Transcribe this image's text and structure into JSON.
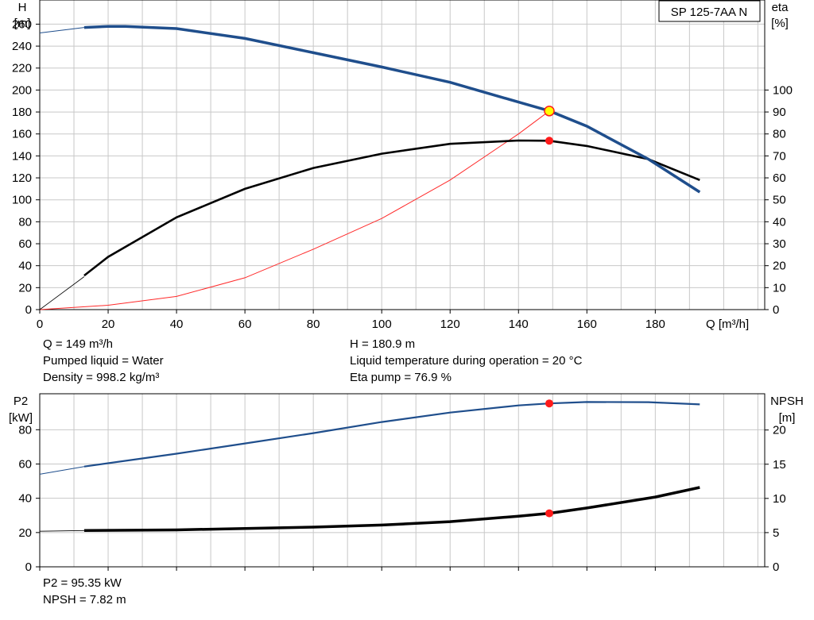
{
  "colors": {
    "head_curve": "#1f4e8c",
    "eta_curve": "#000000",
    "system_curve": "#ff2a2a",
    "p2_curve": "#1f4e8c",
    "npsh_curve": "#000000",
    "marker": "#ff1a1a",
    "marker_duty_fill": "#ffff00",
    "grid": "#c8c8c8"
  },
  "top_chart": {
    "product_label": "SP 125-7AA N",
    "left_axis_label": [
      "H",
      "[m]"
    ],
    "right_axis_label": [
      "eta",
      "[%]"
    ],
    "x_axis_label": "Q [m³/h]"
  },
  "bottom_chart": {
    "left_axis_label": [
      "P2",
      "[kW]"
    ],
    "right_axis_label": [
      "NPSH",
      "[m]"
    ]
  },
  "info_top": {
    "q": "Q = 149 m³/h",
    "pumped_liquid": "Pumped liquid = Water",
    "density": "Density = 998.2 kg/m³",
    "h": "H = 180.9 m",
    "liquid_temp": "Liquid temperature during operation = 20 °C",
    "eta_pump": "Eta pump = 76.9 %"
  },
  "info_bottom": {
    "p2": "P2 = 95.35 kW",
    "npsh": "NPSH = 7.82 m"
  },
  "chart_data": [
    {
      "type": "line",
      "x_ticks": [
        0,
        20,
        40,
        60,
        80,
        100,
        120,
        140,
        160,
        180
      ],
      "xlim": [
        0,
        212
      ],
      "y_left_ticks": [
        0,
        20,
        40,
        60,
        80,
        100,
        120,
        140,
        160,
        180,
        200,
        220,
        240,
        260
      ],
      "ylim_left": [
        0,
        282
      ],
      "y_right_ticks": [
        0,
        10,
        20,
        30,
        40,
        50,
        60,
        70,
        80,
        90,
        100
      ],
      "ylim_right": [
        0,
        141
      ],
      "series": [
        {
          "key": "head",
          "axis": "left",
          "thin_x": [
            0,
            13
          ],
          "thin_y": [
            252,
            257
          ],
          "x": [
            13,
            20,
            25,
            40,
            60,
            80,
            100,
            120,
            140,
            149,
            160,
            178,
            193
          ],
          "y": [
            257,
            258,
            258,
            256,
            247,
            234,
            221,
            207,
            189,
            181,
            167,
            137,
            107
          ]
        },
        {
          "key": "eta",
          "axis": "right",
          "thin_x": [
            0,
            13
          ],
          "thin_y": [
            0,
            15
          ],
          "x": [
            13,
            20,
            40,
            60,
            80,
            100,
            120,
            140,
            149,
            160,
            178,
            193
          ],
          "y": [
            15.5,
            24,
            42,
            55,
            64.5,
            71,
            75.5,
            77,
            76.9,
            74.5,
            68.5,
            59
          ]
        },
        {
          "key": "system",
          "axis": "left",
          "x": [
            0,
            20,
            40,
            60,
            80,
            100,
            120,
            140,
            149
          ],
          "y": [
            0,
            4,
            12,
            29,
            55,
            83,
            118,
            160,
            180.9
          ]
        }
      ],
      "duty_point": {
        "x": 149,
        "y": 180.9
      },
      "eta_point": {
        "x": 149,
        "y": 76.9
      }
    },
    {
      "type": "line",
      "x_ticks": [
        0,
        20,
        40,
        60,
        80,
        100,
        120,
        140,
        160,
        180
      ],
      "xlim": [
        0,
        212
      ],
      "y_left_ticks": [
        0,
        20,
        40,
        60,
        80
      ],
      "ylim_left": [
        0,
        101
      ],
      "y_right_ticks": [
        0,
        5,
        10,
        15,
        20
      ],
      "ylim_right": [
        0,
        25.3
      ],
      "series": [
        {
          "key": "p2",
          "axis": "left",
          "thin_x": [
            0,
            13
          ],
          "thin_y": [
            54,
            58.5
          ],
          "x": [
            13,
            40,
            60,
            80,
            100,
            120,
            140,
            149,
            160,
            178,
            193
          ],
          "y": [
            58.5,
            66,
            72,
            78,
            84.5,
            90,
            94.2,
            95.35,
            96.2,
            96.1,
            94.8
          ]
        },
        {
          "key": "npsh",
          "axis": "right",
          "thin_x": [
            0,
            13
          ],
          "thin_y": [
            5.2,
            5.3
          ],
          "x": [
            13,
            40,
            60,
            80,
            100,
            120,
            140,
            149,
            160,
            180,
            193
          ],
          "y": [
            5.3,
            5.4,
            5.6,
            5.8,
            6.1,
            6.6,
            7.4,
            7.82,
            8.6,
            10.2,
            11.6
          ]
        }
      ],
      "p2_point": {
        "x": 149,
        "y": 95.35
      },
      "npsh_point": {
        "x": 149,
        "y": 7.82
      }
    }
  ]
}
